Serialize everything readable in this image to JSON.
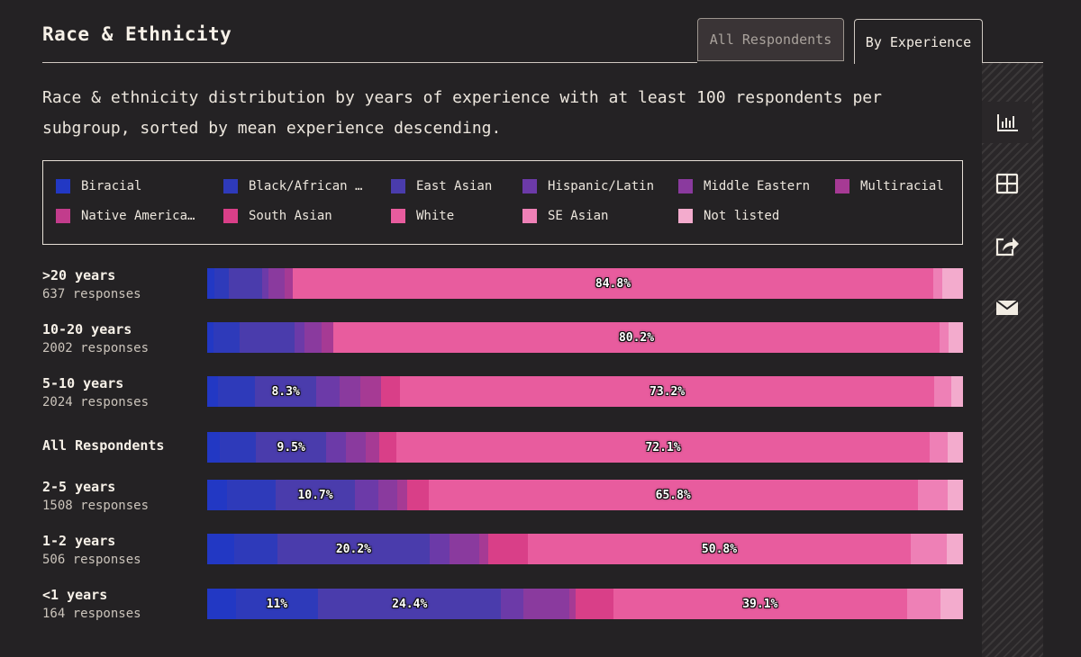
{
  "header": {
    "title": "Race & Ethnicity",
    "tabs": [
      {
        "label": "All Respondents",
        "active": false
      },
      {
        "label": "By Experience",
        "active": true
      }
    ]
  },
  "subtitle": "Race & ethnicity distribution by years of experience with at least 100 respondents per subgroup, sorted by mean experience descending.",
  "sidebar": {
    "items": [
      {
        "icon": "bar-chart-icon",
        "active": true
      },
      {
        "icon": "table-icon",
        "active": false
      },
      {
        "icon": "share-icon",
        "active": false
      },
      {
        "icon": "mail-icon",
        "active": false
      }
    ]
  },
  "colors": {
    "background": "#242224",
    "text": "#f2ece3"
  },
  "chart_data": {
    "type": "bar",
    "orientation": "horizontal",
    "stacked": true,
    "normalized": true,
    "title": "Race & Ethnicity",
    "subtitle": "Race & ethnicity distribution by years of experience with at least 100 respondents per subgroup, sorted by mean experience descending.",
    "legend_position": "top",
    "categories": [
      ">20 years",
      "10-20 years",
      "5-10 years",
      "All Respondents",
      "2-5 years",
      "1-2 years",
      "<1 years"
    ],
    "responses": [
      "637 responses",
      "2002 responses",
      "2024 responses",
      "",
      "1508 responses",
      "506 responses",
      "164 responses"
    ],
    "series": [
      {
        "name": "Biracial",
        "legend_label": "Biracial",
        "color": "#2238c4",
        "values": [
          1.0,
          0.8,
          1.5,
          1.7,
          2.7,
          3.6,
          3.8
        ]
      },
      {
        "name": "Black/African American",
        "legend_label": "Black/African …",
        "color": "#2e3aba",
        "values": [
          1.9,
          3.5,
          5.1,
          4.9,
          6.5,
          5.7,
          11.0
        ],
        "labels": [
          "",
          "",
          "",
          "",
          "",
          "",
          "11%"
        ]
      },
      {
        "name": "East Asian",
        "legend_label": "East Asian",
        "color": "#4a3cac",
        "values": [
          4.4,
          7.3,
          8.3,
          9.5,
          10.7,
          20.2,
          24.4
        ],
        "labels": [
          "",
          "",
          "8.3%",
          "9.5%",
          "10.7%",
          "20.2%",
          "24.4%"
        ]
      },
      {
        "name": "Hispanic/Latin",
        "legend_label": "Hispanic/Latin",
        "color": "#6c3aa8",
        "values": [
          0.8,
          1.3,
          3.2,
          2.6,
          3.1,
          2.6,
          3.0
        ]
      },
      {
        "name": "Middle Eastern",
        "legend_label": "Middle Eastern",
        "color": "#8a3a9e",
        "values": [
          2.2,
          2.2,
          2.9,
          2.8,
          2.6,
          4.0,
          6.1
        ]
      },
      {
        "name": "Multiracial",
        "legend_label": "Multiracial",
        "color": "#a63a94",
        "values": [
          1.0,
          1.6,
          2.8,
          1.8,
          1.3,
          1.2,
          0.9
        ]
      },
      {
        "name": "Native American",
        "legend_label": "Native America…",
        "color": "#c23c8c",
        "values": [
          0.0,
          0.0,
          0.0,
          0.0,
          0.0,
          0.0,
          0.0
        ]
      },
      {
        "name": "South Asian",
        "legend_label": "South Asian",
        "color": "#d93f88",
        "values": [
          0.0,
          0.0,
          2.6,
          2.3,
          2.9,
          5.2,
          5.0
        ]
      },
      {
        "name": "White",
        "legend_label": "White",
        "color": "#e85c9e",
        "values": [
          84.8,
          80.2,
          73.2,
          72.1,
          65.8,
          50.8,
          39.1
        ],
        "labels": [
          "84.8%",
          "80.2%",
          "73.2%",
          "72.1%",
          "65.8%",
          "50.8%",
          "39.1%"
        ]
      },
      {
        "name": "SE Asian",
        "legend_label": "SE Asian",
        "color": "#ee80b6",
        "values": [
          1.2,
          1.2,
          2.3,
          2.4,
          4.0,
          4.8,
          4.5
        ]
      },
      {
        "name": "Not listed",
        "legend_label": "Not listed",
        "color": "#f3abcd",
        "values": [
          2.7,
          1.9,
          1.6,
          2.1,
          2.1,
          2.1,
          3.0
        ]
      }
    ],
    "xlim": [
      0,
      100
    ]
  }
}
